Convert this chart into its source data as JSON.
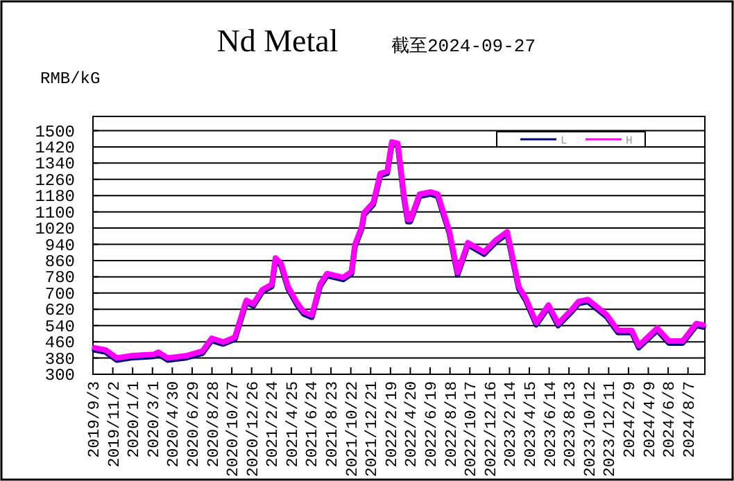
{
  "chart_data": {
    "type": "line",
    "title": "Nd Metal",
    "subtitle": "截至2024-09-27",
    "ylabel": "RMB/kG",
    "x": [
      "2019-09-08",
      "2019-10-11",
      "2019-11-14",
      "2019-12-26",
      "2020-03-05",
      "2020-03-19",
      "2020-04-16",
      "2020-06-11",
      "2020-07-30",
      "2020-08-27",
      "2020-10-01",
      "2020-11-05",
      "2020-12-03",
      "2020-12-10",
      "2020-12-31",
      "2021-01-27",
      "2021-02-25",
      "2021-03-08",
      "2021-03-25",
      "2021-04-15",
      "2021-05-12",
      "2021-06-02",
      "2021-06-26",
      "2021-07-21",
      "2021-08-11",
      "2021-09-29",
      "2021-10-24",
      "2021-11-03",
      "2021-11-24",
      "2021-12-01",
      "2021-12-29",
      "2022-01-19",
      "2022-02-09",
      "2022-02-23",
      "2022-03-13",
      "2022-04-01",
      "2022-04-12",
      "2022-04-20",
      "2022-05-18",
      "2022-06-21",
      "2022-07-12",
      "2022-08-16",
      "2022-09-10",
      "2022-10-11",
      "2022-11-29",
      "2023-01-03",
      "2023-02-07",
      "2023-03-14",
      "2023-04-04",
      "2023-05-06",
      "2023-06-12",
      "2023-07-11",
      "2023-08-21",
      "2023-09-11",
      "2023-10-09",
      "2023-12-04",
      "2024-01-08",
      "2024-02-19",
      "2024-03-11",
      "2024-05-06",
      "2024-06-10",
      "2024-07-22",
      "2024-09-01",
      "2024-09-22"
    ],
    "series": [
      {
        "name": "L",
        "color": "#000080",
        "values": [
          420,
          410,
          370,
          381,
          388,
          399,
          370,
          381,
          404,
          467,
          449,
          472,
          620,
          654,
          636,
          706,
          733,
          863,
          836,
          722,
          643,
          597,
          581,
          733,
          786,
          767,
          795,
          926,
          1017,
          1086,
          1136,
          1279,
          1290,
          1434,
          1427,
          1165,
          1052,
          1052,
          1177,
          1188,
          1177,
          995,
          790,
          938,
          892,
          950,
          992,
          722,
          665,
          544,
          631,
          540,
          608,
          649,
          658,
          585,
          506,
          506,
          431,
          517,
          454,
          454,
          540,
          533
        ]
      },
      {
        "name": "H",
        "color": "#ff00ff",
        "values": [
          430,
          420,
          380,
          391,
          398,
          409,
          380,
          391,
          414,
          477,
          459,
          482,
          630,
          664,
          646,
          716,
          743,
          873,
          846,
          732,
          653,
          607,
          591,
          743,
          796,
          777,
          805,
          936,
          1027,
          1096,
          1146,
          1289,
          1300,
          1444,
          1437,
          1175,
          1062,
          1062,
          1187,
          1198,
          1187,
          1005,
          800,
          948,
          902,
          960,
          1002,
          732,
          675,
          554,
          641,
          550,
          618,
          659,
          668,
          595,
          516,
          516,
          441,
          527,
          464,
          464,
          550,
          543
        ]
      }
    ],
    "xlim": [
      "2019-09-03",
      "2024-09-27"
    ],
    "xticks": [
      {
        "value": "2019-09-03",
        "label": "2019/9/3"
      },
      {
        "value": "2019-11-02",
        "label": "2019/11/2"
      },
      {
        "value": "2020-01-01",
        "label": "2020/1/1"
      },
      {
        "value": "2020-03-01",
        "label": "2020/3/1"
      },
      {
        "value": "2020-04-30",
        "label": "2020/4/30"
      },
      {
        "value": "2020-06-29",
        "label": "2020/6/29"
      },
      {
        "value": "2020-08-28",
        "label": "2020/8/28"
      },
      {
        "value": "2020-10-27",
        "label": "2020/10/27"
      },
      {
        "value": "2020-12-26",
        "label": "2020/12/26"
      },
      {
        "value": "2021-02-24",
        "label": "2021/2/24"
      },
      {
        "value": "2021-04-25",
        "label": "2021/4/25"
      },
      {
        "value": "2021-06-24",
        "label": "2021/6/24"
      },
      {
        "value": "2021-08-23",
        "label": "2021/8/23"
      },
      {
        "value": "2021-10-22",
        "label": "2021/10/22"
      },
      {
        "value": "2021-12-21",
        "label": "2021/12/21"
      },
      {
        "value": "2022-02-19",
        "label": "2022/2/19"
      },
      {
        "value": "2022-04-20",
        "label": "2022/4/20"
      },
      {
        "value": "2022-06-19",
        "label": "2022/6/19"
      },
      {
        "value": "2022-08-18",
        "label": "2022/8/18"
      },
      {
        "value": "2022-10-17",
        "label": "2022/10/17"
      },
      {
        "value": "2022-12-16",
        "label": "2022/12/16"
      },
      {
        "value": "2023-02-14",
        "label": "2023/2/14"
      },
      {
        "value": "2023-04-15",
        "label": "2023/4/15"
      },
      {
        "value": "2023-06-14",
        "label": "2023/6/14"
      },
      {
        "value": "2023-08-13",
        "label": "2023/8/13"
      },
      {
        "value": "2023-10-12",
        "label": "2023/10/12"
      },
      {
        "value": "2023-12-11",
        "label": "2023/12/11"
      },
      {
        "value": "2024-02-09",
        "label": "2024/2/9"
      },
      {
        "value": "2024-04-09",
        "label": "2024/4/9"
      },
      {
        "value": "2024-06-08",
        "label": "2024/6/8"
      },
      {
        "value": "2024-08-07",
        "label": "2024/8/7"
      }
    ],
    "ylim": [
      300,
      1570
    ],
    "yticks": [
      300,
      380,
      460,
      540,
      620,
      700,
      780,
      860,
      940,
      1020,
      1100,
      1180,
      1260,
      1340,
      1420,
      1500
    ],
    "grid": "y",
    "legend": "top right",
    "marker": "none",
    "line_style": "solid"
  }
}
